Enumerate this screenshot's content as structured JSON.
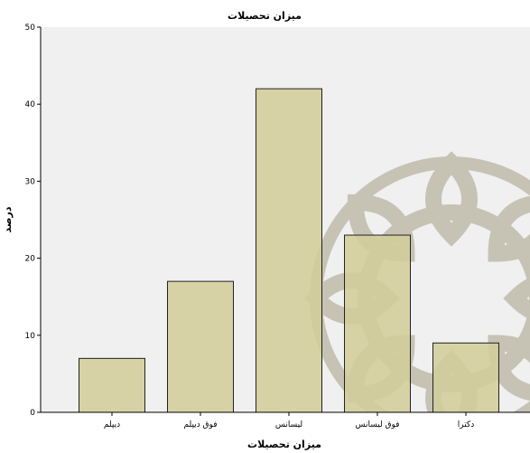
{
  "chart_data": {
    "type": "bar",
    "title": "میزان تحصیلات",
    "xlabel": "میزان تحصیلات",
    "ylabel": "درصد",
    "categories": [
      "دیپلم",
      "فوق دیپلم",
      "لیسانس",
      "فوق لیسانس",
      "دکترا"
    ],
    "values": [
      7,
      17,
      42,
      23,
      9
    ],
    "ylim": [
      0,
      50
    ],
    "yticks": [
      0,
      10,
      20,
      30,
      40,
      50
    ],
    "grid": false,
    "legend": "none",
    "colors": {
      "plot_background": "#f0f0f0",
      "bar_fill": "#d3cd9a",
      "bar_stroke": "#222222",
      "watermark": "#a59f85"
    }
  }
}
